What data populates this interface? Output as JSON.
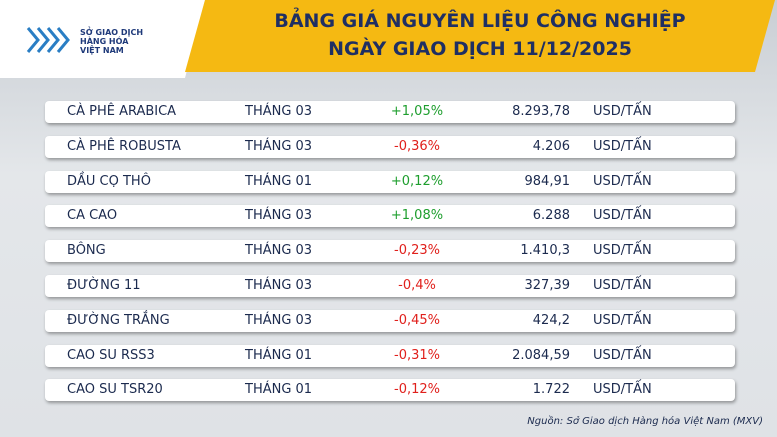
{
  "header": {
    "logo_lines": [
      "SỞ GIAO DỊCH",
      "HÀNG HÓA",
      "VIỆT NAM"
    ],
    "title_lines": [
      "BẢNG GIÁ NGUYÊN LIỆU CÔNG NGHIỆP",
      "NGÀY GIAO DỊCH 11/12/2025"
    ]
  },
  "change_colors": {
    "up": "#1e9e2e",
    "down": "#e0201c"
  },
  "table": {
    "rows": [
      [
        "CÀ PHÊ ARABICA",
        "THÁNG 03",
        "+1,05%",
        "8.293,78",
        "USD/TẤN"
      ],
      [
        "CÀ PHÊ ROBUSTA",
        "THÁNG 03",
        "-0,36%",
        "4.206",
        "USD/TẤN"
      ],
      [
        "DẦU CỌ THÔ",
        "THÁNG 01",
        "+0,12%",
        "984,91",
        "USD/TẤN"
      ],
      [
        "CA CAO",
        "THÁNG 03",
        "+1,08%",
        "6.288",
        "USD/TẤN"
      ],
      [
        "BÔNG",
        "THÁNG 03",
        "-0,23%",
        "1.410,3",
        "USD/TẤN"
      ],
      [
        "ĐƯỜNG 11",
        "THÁNG 03",
        "-0,4%",
        "327,39",
        "USD/TẤN"
      ],
      [
        "ĐƯỜNG TRẮNG",
        "THÁNG 03",
        "-0,45%",
        "424,2",
        "USD/TẤN"
      ],
      [
        "CAO SU RSS3",
        "THÁNG 01",
        "-0,31%",
        "2.084,59",
        "USD/TẤN"
      ],
      [
        "CAO SU TSR20",
        "THÁNG 01",
        "-0,12%",
        "1.722",
        "USD/TẤN"
      ]
    ]
  },
  "footer": {
    "source": "Nguồn: Sở Giao dịch Hàng hóa Việt Nam (MXV)"
  }
}
